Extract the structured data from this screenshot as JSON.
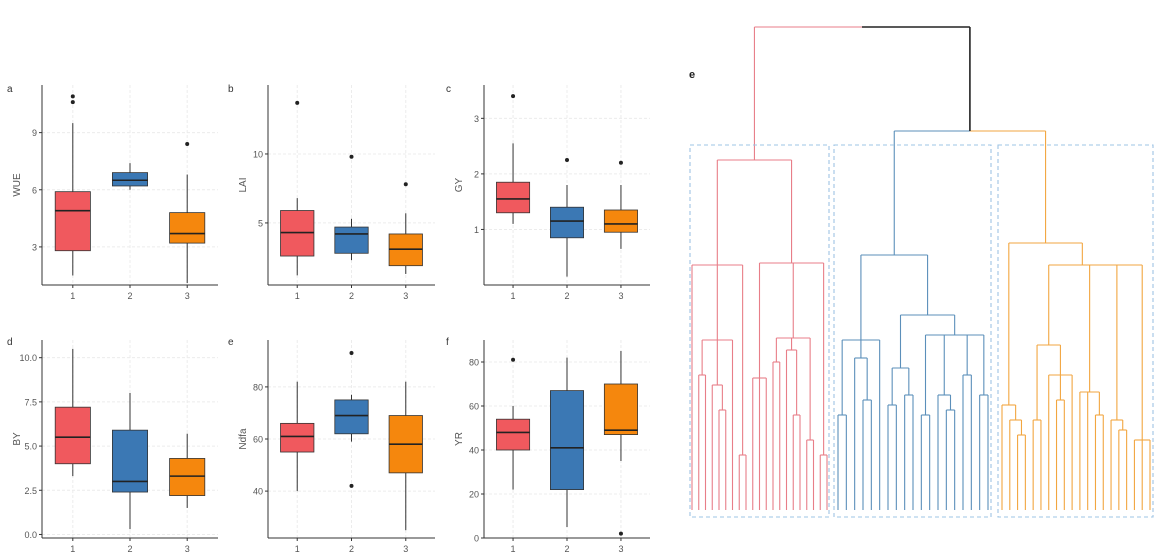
{
  "colors": {
    "cluster1": "#f0595e",
    "cluster2": "#3b78b4",
    "cluster3": "#f5870d",
    "line1": "#e87e88",
    "line2": "#5b8fba",
    "line3": "#f2a640",
    "dashed_box": "#9ec4e4",
    "root_line": "#222222",
    "grid": "#ececec",
    "axis": "#333333",
    "text": "#555555"
  },
  "chart_data": [
    {
      "type": "box",
      "panel_label": "a",
      "ylabel": "WUE",
      "categories": [
        "1",
        "2",
        "3"
      ],
      "ylim": [
        1.0,
        11.5
      ],
      "yticks": [
        3,
        6,
        9
      ],
      "boxes": [
        {
          "min": 1.5,
          "q1": 2.8,
          "median": 4.9,
          "q3": 5.9,
          "max": 9.5,
          "outliers": [
            10.6,
            10.9
          ]
        },
        {
          "min": 6.0,
          "q1": 6.2,
          "median": 6.5,
          "q3": 6.9,
          "max": 7.4,
          "outliers": []
        },
        {
          "min": 1.1,
          "q1": 3.2,
          "median": 3.7,
          "q3": 4.8,
          "max": 6.8,
          "outliers": [
            8.4
          ]
        }
      ]
    },
    {
      "type": "box",
      "panel_label": "b",
      "ylabel": "LAI",
      "categories": [
        "1",
        "2",
        "3"
      ],
      "ylim": [
        0.5,
        15.0
      ],
      "yticks": [
        5,
        10
      ],
      "boxes": [
        {
          "min": 1.2,
          "q1": 2.6,
          "median": 4.3,
          "q3": 5.9,
          "max": 6.8,
          "outliers": [
            13.7
          ]
        },
        {
          "min": 2.3,
          "q1": 2.8,
          "median": 4.2,
          "q3": 4.7,
          "max": 5.3,
          "outliers": [
            9.8
          ]
        },
        {
          "min": 1.3,
          "q1": 1.9,
          "median": 3.1,
          "q3": 4.2,
          "max": 5.7,
          "outliers": [
            7.8
          ]
        }
      ]
    },
    {
      "type": "box",
      "panel_label": "c",
      "ylabel": "GY",
      "categories": [
        "1",
        "2",
        "3"
      ],
      "ylim": [
        0.0,
        3.6
      ],
      "yticks": [
        1,
        2,
        3
      ],
      "boxes": [
        {
          "min": 1.1,
          "q1": 1.3,
          "median": 1.55,
          "q3": 1.85,
          "max": 2.55,
          "outliers": [
            3.4
          ]
        },
        {
          "min": 0.15,
          "q1": 0.85,
          "median": 1.15,
          "q3": 1.4,
          "max": 1.8,
          "outliers": [
            2.25
          ]
        },
        {
          "min": 0.65,
          "q1": 0.95,
          "median": 1.1,
          "q3": 1.35,
          "max": 1.8,
          "outliers": [
            2.2
          ]
        }
      ]
    },
    {
      "type": "box",
      "panel_label": "d",
      "ylabel": "BY",
      "categories": [
        "1",
        "2",
        "3"
      ],
      "ylim": [
        -0.2,
        11.0
      ],
      "yticks": [
        0.0,
        2.5,
        5.0,
        7.5,
        10.0
      ],
      "ytick_labels": [
        "0.0",
        "2.5",
        "5.0",
        "7.5",
        "10.0"
      ],
      "boxes": [
        {
          "min": 3.3,
          "q1": 4.0,
          "median": 5.5,
          "q3": 7.2,
          "max": 10.5,
          "outliers": []
        },
        {
          "min": 0.3,
          "q1": 2.4,
          "median": 3.0,
          "q3": 5.9,
          "max": 8.0,
          "outliers": []
        },
        {
          "min": 1.5,
          "q1": 2.2,
          "median": 3.3,
          "q3": 4.3,
          "max": 5.7,
          "outliers": []
        }
      ]
    },
    {
      "type": "box",
      "panel_label": "e",
      "ylabel": "Ndfa",
      "categories": [
        "1",
        "2",
        "3"
      ],
      "ylim": [
        22,
        98
      ],
      "yticks": [
        40,
        60,
        80
      ],
      "boxes": [
        {
          "min": 40,
          "q1": 55,
          "median": 61,
          "q3": 66,
          "max": 82,
          "outliers": []
        },
        {
          "min": 59,
          "q1": 62,
          "median": 69,
          "q3": 75,
          "max": 77,
          "outliers": [
            93,
            42
          ]
        },
        {
          "min": 25,
          "q1": 47,
          "median": 58,
          "q3": 69,
          "max": 82,
          "outliers": []
        }
      ]
    },
    {
      "type": "box",
      "panel_label": "f",
      "ylabel": "YR",
      "categories": [
        "1",
        "2",
        "3"
      ],
      "ylim": [
        0,
        90
      ],
      "yticks": [
        0,
        20,
        40,
        60,
        80
      ],
      "boxes": [
        {
          "min": 22,
          "q1": 40,
          "median": 48,
          "q3": 54,
          "max": 60,
          "outliers": [
            81
          ]
        },
        {
          "min": 5,
          "q1": 22,
          "median": 41,
          "q3": 67,
          "max": 82,
          "outliers": []
        },
        {
          "min": 35,
          "q1": 47,
          "median": 49,
          "q3": 70,
          "max": 85,
          "outliers": [
            2
          ]
        }
      ]
    },
    {
      "type": "dendrogram",
      "panel_label": "e",
      "clusters": [
        {
          "name": "1",
          "leaves": 21
        },
        {
          "name": "2",
          "leaves": 19
        },
        {
          "name": "3",
          "leaves": 20
        }
      ]
    }
  ]
}
